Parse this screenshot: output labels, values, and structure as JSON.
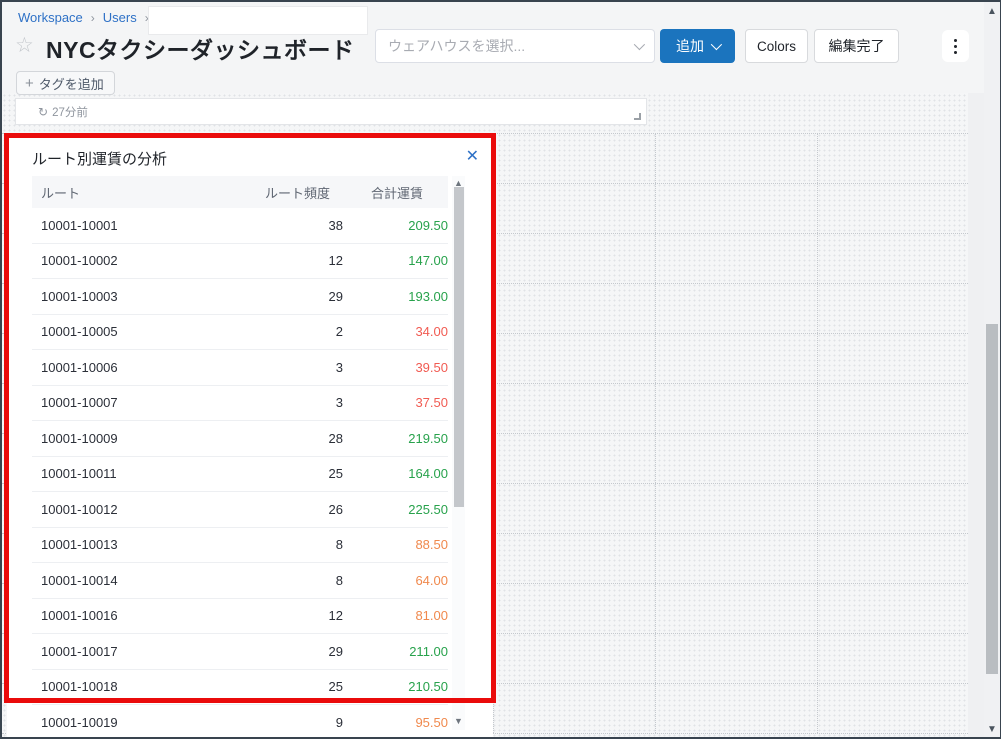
{
  "colors": {
    "green": "#28a24c",
    "red": "#f15b52",
    "orange": "#f0894d",
    "primary_blue": "#1b74be",
    "link_blue": "#2e71c6",
    "annotation_red": "#ea0b0b"
  },
  "breadcrumb": {
    "items": [
      "Workspace",
      "Users"
    ],
    "separator": "›"
  },
  "header": {
    "star_icon": "☆",
    "title": "NYCタクシーダッシュボード",
    "warehouse_select_placeholder": "ウェアハウスを選択...",
    "add_button_label": "追加",
    "colors_button_label": "Colors",
    "finish_edit_button_label": "編集完了",
    "add_tag_button_label": "タグを追加",
    "add_tag_plus_icon": "+"
  },
  "time_widget": {
    "refresh_icon": "↻",
    "label": "27分前"
  },
  "panel": {
    "title": "ルート別運賃の分析",
    "close_icon": "✕",
    "table": {
      "columns": [
        "ルート",
        "ルート頻度",
        "合計運賃"
      ],
      "rows": [
        {
          "route": "10001-10001",
          "frequency": "38",
          "fare": "209.50",
          "fare_color": "green"
        },
        {
          "route": "10001-10002",
          "frequency": "12",
          "fare": "147.00",
          "fare_color": "green"
        },
        {
          "route": "10001-10003",
          "frequency": "29",
          "fare": "193.00",
          "fare_color": "green"
        },
        {
          "route": "10001-10005",
          "frequency": "2",
          "fare": "34.00",
          "fare_color": "red"
        },
        {
          "route": "10001-10006",
          "frequency": "3",
          "fare": "39.50",
          "fare_color": "red"
        },
        {
          "route": "10001-10007",
          "frequency": "3",
          "fare": "37.50",
          "fare_color": "red"
        },
        {
          "route": "10001-10009",
          "frequency": "28",
          "fare": "219.50",
          "fare_color": "green"
        },
        {
          "route": "10001-10011",
          "frequency": "25",
          "fare": "164.00",
          "fare_color": "green"
        },
        {
          "route": "10001-10012",
          "frequency": "26",
          "fare": "225.50",
          "fare_color": "green"
        },
        {
          "route": "10001-10013",
          "frequency": "8",
          "fare": "88.50",
          "fare_color": "orange"
        },
        {
          "route": "10001-10014",
          "frequency": "8",
          "fare": "64.00",
          "fare_color": "orange"
        },
        {
          "route": "10001-10016",
          "frequency": "12",
          "fare": "81.00",
          "fare_color": "orange"
        },
        {
          "route": "10001-10017",
          "frequency": "29",
          "fare": "211.00",
          "fare_color": "green"
        },
        {
          "route": "10001-10018",
          "frequency": "25",
          "fare": "210.50",
          "fare_color": "green"
        },
        {
          "route": "10001-10019",
          "frequency": "9",
          "fare": "95.50",
          "fare_color": "orange"
        }
      ]
    }
  },
  "scrollbars": {
    "up_arrow": "▲",
    "down_arrow": "▼"
  }
}
